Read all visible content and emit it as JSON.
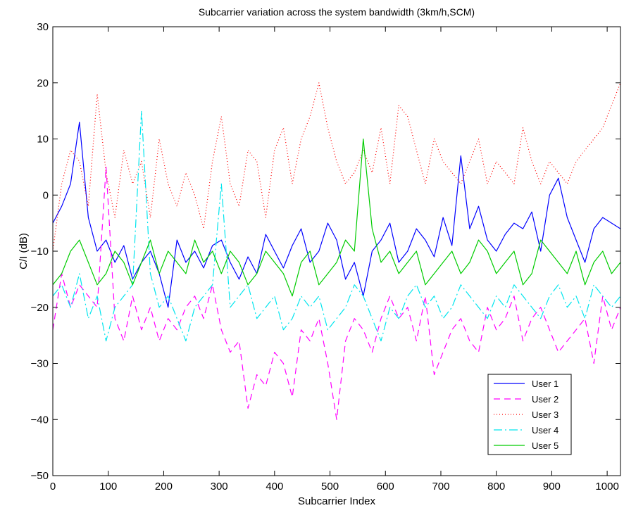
{
  "chart_data": {
    "type": "line",
    "title": "Subcarrier variation across the system bandwidth (3km/h,SCM)",
    "xlabel": "Subcarrier Index",
    "ylabel": "C/I (dB)",
    "xlim": [
      0,
      1024
    ],
    "ylim": [
      -50,
      30
    ],
    "x_ticks": [
      0,
      100,
      200,
      300,
      400,
      500,
      600,
      700,
      800,
      900,
      1000
    ],
    "y_ticks": [
      -50,
      -40,
      -30,
      -20,
      -10,
      0,
      10,
      20,
      30
    ],
    "x_tick_labels": [
      "0",
      "100",
      "200",
      "300",
      "400",
      "500",
      "600",
      "700",
      "800",
      "900",
      "1000"
    ],
    "y_tick_labels": [
      "−50",
      "−40",
      "−30",
      "−20",
      "−10",
      "0",
      "10",
      "20",
      "30"
    ],
    "grid": false,
    "legend_position": "bottom-right",
    "x": [
      0,
      16,
      32,
      48,
      64,
      80,
      96,
      112,
      128,
      144,
      160,
      176,
      192,
      208,
      224,
      240,
      256,
      272,
      288,
      304,
      320,
      336,
      352,
      368,
      384,
      400,
      416,
      432,
      448,
      464,
      480,
      496,
      512,
      528,
      544,
      560,
      576,
      592,
      608,
      624,
      640,
      656,
      672,
      688,
      704,
      720,
      736,
      752,
      768,
      784,
      800,
      816,
      832,
      848,
      864,
      880,
      896,
      912,
      928,
      944,
      960,
      976,
      992,
      1008,
      1024
    ],
    "series": [
      {
        "name": "User 1",
        "color": "#0000ff",
        "dash": "",
        "values": [
          -5,
          -2,
          2,
          13,
          -4,
          -10,
          -8,
          -12,
          -9,
          -15,
          -12,
          -10,
          -14,
          -20,
          -8,
          -12,
          -10,
          -13,
          -9,
          -8,
          -12,
          -15,
          -11,
          -14,
          -7,
          -10,
          -13,
          -9,
          -6,
          -12,
          -10,
          -5,
          -8,
          -15,
          -12,
          -18,
          -10,
          -8,
          -5,
          -12,
          -10,
          -6,
          -8,
          -11,
          -4,
          -9,
          7,
          -6,
          -2,
          -8,
          -10,
          -7,
          -5,
          -6,
          -3,
          -10,
          0,
          3,
          -4,
          -8,
          -12,
          -6,
          -4,
          -5,
          -6
        ]
      },
      {
        "name": "User 2",
        "color": "#ff00ff",
        "dash": "9,6",
        "values": [
          -24,
          -14,
          -20,
          -16,
          -18,
          -20,
          5,
          -22,
          -26,
          -18,
          -24,
          -20,
          -26,
          -22,
          -24,
          -20,
          -18,
          -22,
          -16,
          -24,
          -28,
          -26,
          -38,
          -32,
          -34,
          -28,
          -30,
          -36,
          -24,
          -26,
          -22,
          -30,
          -40,
          -26,
          -22,
          -24,
          -28,
          -22,
          -18,
          -22,
          -20,
          -26,
          -18,
          -32,
          -28,
          -24,
          -22,
          -26,
          -28,
          -20,
          -24,
          -22,
          -18,
          -26,
          -22,
          -20,
          -24,
          -28,
          -26,
          -24,
          -22,
          -30,
          -18,
          -24,
          -20
        ]
      },
      {
        "name": "User 3",
        "color": "#ff0000",
        "dash": "1,3",
        "values": [
          -10,
          2,
          8,
          6,
          -2,
          18,
          4,
          -4,
          8,
          2,
          6,
          -4,
          10,
          2,
          -2,
          4,
          0,
          -6,
          6,
          14,
          2,
          -2,
          8,
          6,
          -4,
          8,
          12,
          2,
          10,
          14,
          20,
          12,
          6,
          2,
          4,
          8,
          4,
          12,
          2,
          16,
          14,
          8,
          2,
          10,
          6,
          4,
          2,
          6,
          10,
          2,
          6,
          4,
          2,
          12,
          6,
          2,
          6,
          4,
          2,
          6,
          8,
          10,
          12,
          16,
          20
        ]
      },
      {
        "name": "User 4",
        "color": "#00e5ee",
        "dash": "12,4,2,4",
        "values": [
          -18,
          -16,
          -20,
          -14,
          -22,
          -18,
          -26,
          -20,
          -18,
          -16,
          15,
          -14,
          -20,
          -18,
          -22,
          -26,
          -20,
          -18,
          -16,
          2,
          -20,
          -18,
          -16,
          -22,
          -20,
          -18,
          -24,
          -22,
          -18,
          -20,
          -18,
          -24,
          -22,
          -20,
          -16,
          -18,
          -22,
          -26,
          -20,
          -22,
          -18,
          -16,
          -20,
          -18,
          -22,
          -20,
          -16,
          -18,
          -20,
          -22,
          -18,
          -20,
          -16,
          -18,
          -20,
          -22,
          -18,
          -16,
          -20,
          -18,
          -22,
          -16,
          -18,
          -20,
          -18
        ]
      },
      {
        "name": "User 5",
        "color": "#00cc00",
        "dash": "",
        "values": [
          -16,
          -14,
          -10,
          -8,
          -12,
          -16,
          -14,
          -10,
          -12,
          -16,
          -12,
          -8,
          -14,
          -10,
          -12,
          -14,
          -8,
          -12,
          -10,
          -14,
          -10,
          -12,
          -16,
          -14,
          -10,
          -12,
          -14,
          -18,
          -12,
          -10,
          -16,
          -14,
          -12,
          -8,
          -10,
          10,
          -6,
          -12,
          -10,
          -14,
          -12,
          -10,
          -16,
          -14,
          -12,
          -10,
          -14,
          -12,
          -8,
          -10,
          -14,
          -12,
          -10,
          -16,
          -14,
          -8,
          -10,
          -12,
          -14,
          -10,
          -16,
          -12,
          -10,
          -14,
          -12
        ]
      }
    ]
  }
}
